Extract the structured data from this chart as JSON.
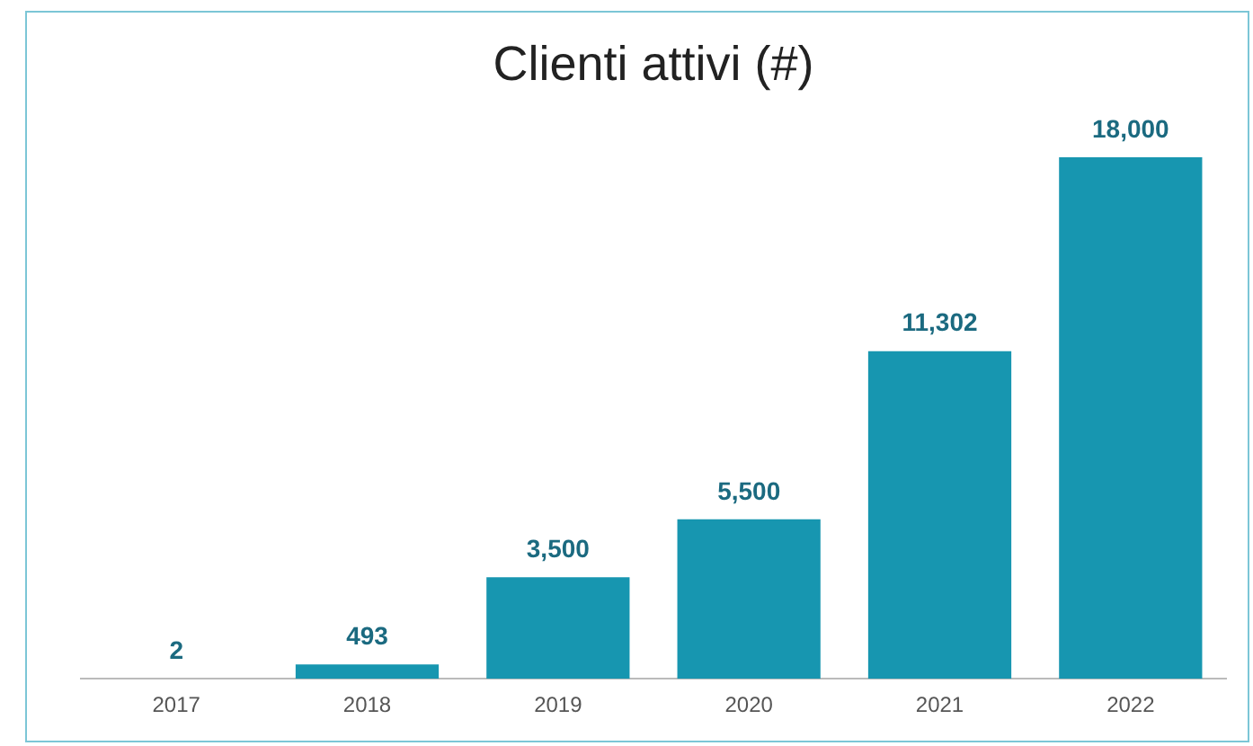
{
  "chart_data": {
    "type": "bar",
    "title": "Clienti attivi (#)",
    "categories": [
      "2017",
      "2018",
      "2019",
      "2020",
      "2021",
      "2022"
    ],
    "values": [
      2,
      493,
      3500,
      5500,
      11302,
      18000
    ],
    "value_labels": [
      "2",
      "493",
      "3,500",
      "5,500",
      "11,302",
      "18,000"
    ],
    "color": "#1796b0",
    "grid": false,
    "legend": false
  }
}
